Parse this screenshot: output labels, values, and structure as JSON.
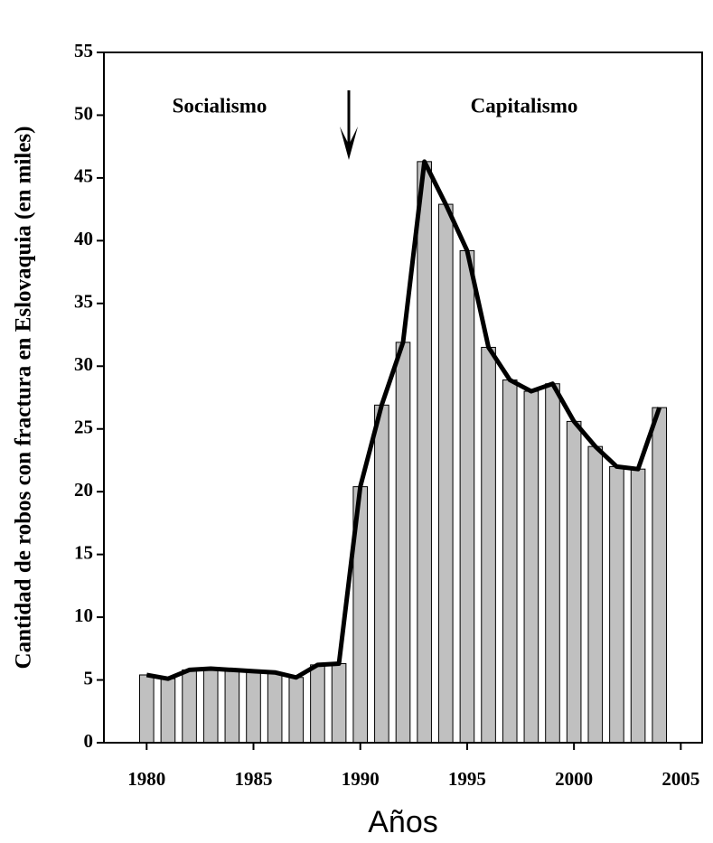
{
  "chart_data": {
    "type": "bar",
    "line_overlay": true,
    "x_label": "Años",
    "y_label": "Cantidad de robos con fractura en Eslovaquia (en miles)",
    "annotations": [
      "Socialismo",
      "Capitalismo"
    ],
    "x": [
      1980,
      1981,
      1982,
      1983,
      1984,
      1985,
      1986,
      1987,
      1988,
      1989,
      1990,
      1991,
      1992,
      1993,
      1994,
      1995,
      1996,
      1997,
      1998,
      1999,
      2000,
      2001,
      2002,
      2003,
      2004
    ],
    "values": [
      5.4,
      5.1,
      5.8,
      5.9,
      5.8,
      5.7,
      5.6,
      5.2,
      6.2,
      6.3,
      20.4,
      26.9,
      31.9,
      46.3,
      42.9,
      39.2,
      31.5,
      28.9,
      28.0,
      28.6,
      25.6,
      23.6,
      22.0,
      21.8,
      26.7
    ],
    "color": "#c0c0c0",
    "line_color": "#000000",
    "xlim": [
      1978,
      2006
    ],
    "xticks": [
      1980,
      1985,
      1990,
      1995,
      2000,
      2005
    ],
    "ylim": [
      0,
      55
    ],
    "yticks": [
      0,
      5,
      10,
      15,
      20,
      25,
      30,
      35,
      40,
      45,
      50,
      55
    ]
  }
}
